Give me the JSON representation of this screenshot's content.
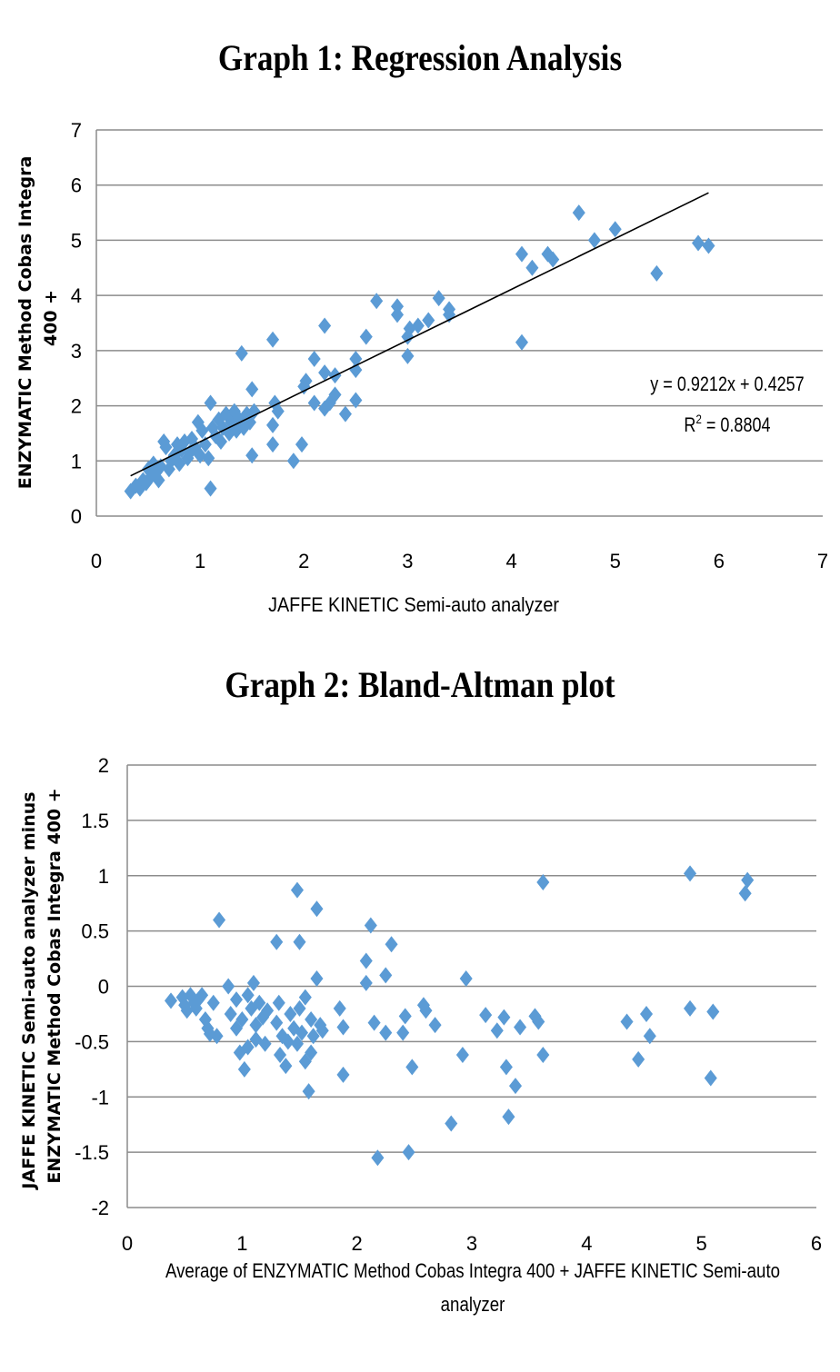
{
  "chart_data": [
    {
      "type": "scatter",
      "title": "Graph 1: Regression Analysis",
      "xlabel": "JAFFE KINETIC  Semi-auto analyzer",
      "ylabel_lines": [
        "ENZYMATIC Method Cobas Integra",
        "400  +"
      ],
      "xlim": [
        0,
        7
      ],
      "ylim": [
        0,
        7
      ],
      "xticks": [
        "0",
        "1",
        "2",
        "3",
        "4",
        "5",
        "6",
        "7"
      ],
      "yticks": [
        "0",
        "1",
        "2",
        "3",
        "4",
        "5",
        "6",
        "7"
      ],
      "grid": "horizontal",
      "marker_color": "#5B9BD5",
      "trendline": {
        "slope": 0.9212,
        "intercept": 0.4257,
        "x_range": [
          0.33,
          5.9
        ]
      },
      "equation": "y = 0.9212x + 0.4257",
      "r_squared_label": "R",
      "r_squared_sup": "2",
      "r_squared_value": " = 0.8804",
      "points": [
        [
          0.33,
          0.45
        ],
        [
          0.38,
          0.55
        ],
        [
          0.42,
          0.5
        ],
        [
          0.45,
          0.65
        ],
        [
          0.48,
          0.6
        ],
        [
          0.5,
          0.85
        ],
        [
          0.52,
          0.7
        ],
        [
          0.55,
          0.95
        ],
        [
          0.58,
          0.8
        ],
        [
          0.6,
          0.65
        ],
        [
          0.62,
          0.9
        ],
        [
          0.65,
          1.35
        ],
        [
          0.67,
          1.25
        ],
        [
          0.7,
          0.85
        ],
        [
          0.72,
          1.0
        ],
        [
          0.75,
          1.1
        ],
        [
          0.78,
          1.3
        ],
        [
          0.8,
          0.95
        ],
        [
          0.82,
          1.2
        ],
        [
          0.85,
          1.35
        ],
        [
          0.88,
          1.05
        ],
        [
          0.9,
          1.15
        ],
        [
          0.92,
          1.4
        ],
        [
          0.95,
          1.25
        ],
        [
          0.98,
          1.7
        ],
        [
          1.0,
          1.1
        ],
        [
          1.02,
          1.55
        ],
        [
          1.05,
          1.3
        ],
        [
          1.08,
          1.05
        ],
        [
          1.1,
          2.05
        ],
        [
          1.1,
          0.5
        ],
        [
          1.12,
          1.6
        ],
        [
          1.15,
          1.45
        ],
        [
          1.18,
          1.75
        ],
        [
          1.2,
          1.35
        ],
        [
          1.22,
          1.6
        ],
        [
          1.25,
          1.85
        ],
        [
          1.28,
          1.5
        ],
        [
          1.3,
          1.7
        ],
        [
          1.33,
          1.9
        ],
        [
          1.35,
          1.55
        ],
        [
          1.38,
          1.75
        ],
        [
          1.4,
          2.95
        ],
        [
          1.42,
          1.6
        ],
        [
          1.45,
          1.85
        ],
        [
          1.48,
          1.7
        ],
        [
          1.5,
          2.3
        ],
        [
          1.5,
          1.1
        ],
        [
          1.52,
          1.9
        ],
        [
          1.7,
          3.2
        ],
        [
          1.7,
          1.3
        ],
        [
          1.7,
          1.65
        ],
        [
          1.72,
          2.05
        ],
        [
          1.75,
          1.9
        ],
        [
          1.9,
          1.0
        ],
        [
          1.98,
          1.3
        ],
        [
          2.0,
          2.35
        ],
        [
          2.02,
          2.45
        ],
        [
          2.1,
          2.85
        ],
        [
          2.1,
          2.05
        ],
        [
          2.2,
          3.45
        ],
        [
          2.2,
          2.6
        ],
        [
          2.2,
          1.95
        ],
        [
          2.25,
          2.05
        ],
        [
          2.3,
          2.2
        ],
        [
          2.3,
          2.55
        ],
        [
          2.4,
          1.85
        ],
        [
          2.5,
          2.65
        ],
        [
          2.5,
          2.85
        ],
        [
          2.5,
          2.1
        ],
        [
          2.6,
          3.25
        ],
        [
          2.7,
          3.9
        ],
        [
          2.9,
          3.8
        ],
        [
          2.9,
          3.65
        ],
        [
          3.0,
          3.25
        ],
        [
          3.0,
          2.9
        ],
        [
          3.02,
          3.4
        ],
        [
          3.1,
          3.45
        ],
        [
          3.2,
          3.55
        ],
        [
          3.3,
          3.95
        ],
        [
          3.4,
          3.75
        ],
        [
          3.4,
          3.65
        ],
        [
          4.1,
          4.75
        ],
        [
          4.1,
          3.15
        ],
        [
          4.2,
          4.5
        ],
        [
          4.35,
          4.75
        ],
        [
          4.4,
          4.65
        ],
        [
          4.65,
          5.5
        ],
        [
          4.8,
          5.0
        ],
        [
          5.0,
          5.2
        ],
        [
          5.4,
          4.4
        ],
        [
          5.8,
          4.95
        ],
        [
          5.9,
          4.9
        ]
      ]
    },
    {
      "type": "scatter",
      "title": "Graph 2: Bland-Altman plot",
      "xlabel_lines": [
        "Average of ENZYMATIC Method Cobas Integra 400 + JAFFE KINETIC  Semi-auto",
        "analyzer"
      ],
      "ylabel_lines": [
        "JAFFE KINETIC Semi-auto analyzer minus",
        "ENZYMATIC Method Cobas Integra 400 +"
      ],
      "xlim": [
        0,
        6
      ],
      "ylim": [
        -2,
        2
      ],
      "xticks": [
        "0",
        "1",
        "2",
        "3",
        "4",
        "5",
        "6"
      ],
      "yticks": [
        "2",
        "1.5",
        "1",
        "0.5",
        "0",
        "-0.5",
        "-1",
        "-1.5",
        "-2"
      ],
      "grid": "horizontal",
      "marker_color": "#5B9BD5",
      "points": [
        [
          0.38,
          -0.13
        ],
        [
          0.48,
          -0.1
        ],
        [
          0.5,
          -0.17
        ],
        [
          0.52,
          -0.22
        ],
        [
          0.55,
          -0.08
        ],
        [
          0.58,
          -0.15
        ],
        [
          0.6,
          -0.2
        ],
        [
          0.62,
          -0.12
        ],
        [
          0.65,
          -0.08
        ],
        [
          0.68,
          -0.3
        ],
        [
          0.7,
          -0.38
        ],
        [
          0.72,
          -0.43
        ],
        [
          0.75,
          -0.15
        ],
        [
          0.78,
          -0.45
        ],
        [
          0.8,
          0.6
        ],
        [
          0.88,
          0.0
        ],
        [
          0.9,
          -0.25
        ],
        [
          0.95,
          -0.38
        ],
        [
          0.95,
          -0.12
        ],
        [
          0.98,
          -0.6
        ],
        [
          1.0,
          -0.3
        ],
        [
          1.02,
          -0.75
        ],
        [
          1.05,
          -0.08
        ],
        [
          1.05,
          -0.55
        ],
        [
          1.08,
          -0.2
        ],
        [
          1.1,
          0.03
        ],
        [
          1.12,
          -0.48
        ],
        [
          1.12,
          -0.35
        ],
        [
          1.15,
          -0.15
        ],
        [
          1.18,
          -0.28
        ],
        [
          1.2,
          -0.52
        ],
        [
          1.22,
          -0.22
        ],
        [
          1.3,
          0.4
        ],
        [
          1.3,
          -0.33
        ],
        [
          1.32,
          -0.15
        ],
        [
          1.33,
          -0.62
        ],
        [
          1.35,
          -0.45
        ],
        [
          1.38,
          -0.72
        ],
        [
          1.4,
          -0.5
        ],
        [
          1.42,
          -0.25
        ],
        [
          1.45,
          -0.38
        ],
        [
          1.48,
          0.87
        ],
        [
          1.48,
          -0.52
        ],
        [
          1.5,
          0.4
        ],
        [
          1.5,
          -0.2
        ],
        [
          1.52,
          -0.42
        ],
        [
          1.55,
          -0.1
        ],
        [
          1.55,
          -0.68
        ],
        [
          1.58,
          -0.95
        ],
        [
          1.6,
          -0.6
        ],
        [
          1.6,
          -0.3
        ],
        [
          1.62,
          -0.45
        ],
        [
          1.65,
          0.7
        ],
        [
          1.65,
          0.07
        ],
        [
          1.68,
          -0.35
        ],
        [
          1.7,
          -0.4
        ],
        [
          1.85,
          -0.2
        ],
        [
          1.88,
          -0.8
        ],
        [
          1.88,
          -0.37
        ],
        [
          2.08,
          0.23
        ],
        [
          2.08,
          0.03
        ],
        [
          2.12,
          0.55
        ],
        [
          2.15,
          -0.33
        ],
        [
          2.18,
          -1.55
        ],
        [
          2.25,
          0.1
        ],
        [
          2.25,
          -0.42
        ],
        [
          2.3,
          0.38
        ],
        [
          2.4,
          -0.42
        ],
        [
          2.42,
          -0.27
        ],
        [
          2.45,
          -1.5
        ],
        [
          2.48,
          -0.73
        ],
        [
          2.58,
          -0.17
        ],
        [
          2.6,
          -0.22
        ],
        [
          2.68,
          -0.35
        ],
        [
          2.82,
          -1.24
        ],
        [
          2.92,
          -0.62
        ],
        [
          2.95,
          0.07
        ],
        [
          3.12,
          -0.26
        ],
        [
          3.22,
          -0.4
        ],
        [
          3.28,
          -0.28
        ],
        [
          3.3,
          -0.73
        ],
        [
          3.32,
          -1.18
        ],
        [
          3.38,
          -0.9
        ],
        [
          3.42,
          -0.37
        ],
        [
          3.55,
          -0.27
        ],
        [
          3.58,
          -0.32
        ],
        [
          3.62,
          0.94
        ],
        [
          3.62,
          -0.62
        ],
        [
          4.35,
          -0.32
        ],
        [
          4.45,
          -0.66
        ],
        [
          4.52,
          -0.25
        ],
        [
          4.55,
          -0.45
        ],
        [
          4.9,
          1.02
        ],
        [
          4.9,
          -0.2
        ],
        [
          5.08,
          -0.83
        ],
        [
          5.1,
          -0.23
        ],
        [
          5.38,
          0.84
        ],
        [
          5.4,
          0.96
        ]
      ]
    }
  ]
}
